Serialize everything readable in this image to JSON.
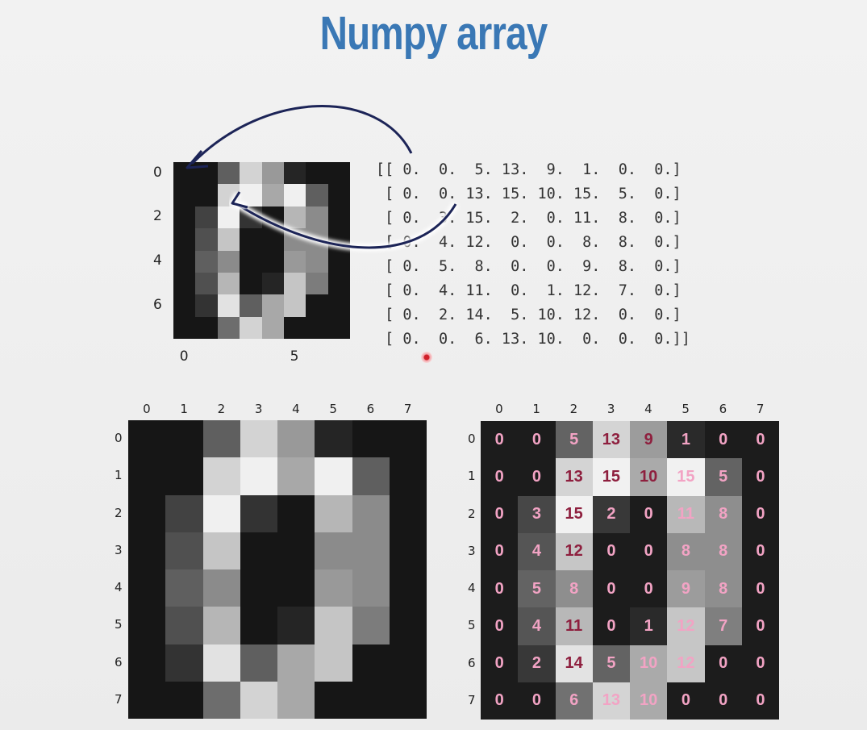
{
  "title": "Numpy array",
  "pixels": [
    [
      0,
      0,
      5,
      13,
      9,
      1,
      0,
      0
    ],
    [
      0,
      0,
      13,
      15,
      10,
      15,
      5,
      0
    ],
    [
      0,
      3,
      15,
      2,
      0,
      11,
      8,
      0
    ],
    [
      0,
      4,
      12,
      0,
      0,
      8,
      8,
      0
    ],
    [
      0,
      5,
      8,
      0,
      0,
      9,
      8,
      0
    ],
    [
      0,
      4,
      11,
      0,
      1,
      12,
      7,
      0
    ],
    [
      0,
      2,
      14,
      5,
      10,
      12,
      0,
      0
    ],
    [
      0,
      0,
      6,
      13,
      10,
      0,
      0,
      0
    ]
  ],
  "small_image": {
    "y_ticks": [
      "0",
      "2",
      "4",
      "6"
    ],
    "x_ticks": [
      "0",
      "5"
    ]
  },
  "array_text": "[[ 0.  0.  5. 13.  9.  1.  0.  0.]\n [ 0.  0. 13. 15. 10. 15.  5.  0.]\n [ 0.  3. 15.  2.  0. 11.  8.  0.]\n [ 0.  4. 12.  0.  0.  8.  8.  0.]\n [ 0.  5.  8.  0.  0.  9.  8.  0.]\n [ 0.  4. 11.  0.  1. 12.  7.  0.]\n [ 0.  2. 14.  5. 10. 12.  0.  0.]\n [ 0.  0.  6. 13. 10.  0.  0.  0.]]",
  "large_grid_ticks": [
    "0",
    "1",
    "2",
    "3",
    "4",
    "5",
    "6",
    "7"
  ],
  "colors": {
    "title": "#3a78b5",
    "arrow": "#1c2457",
    "label_dark": "#8e1f3e",
    "label_light": "#f2a3c4"
  }
}
